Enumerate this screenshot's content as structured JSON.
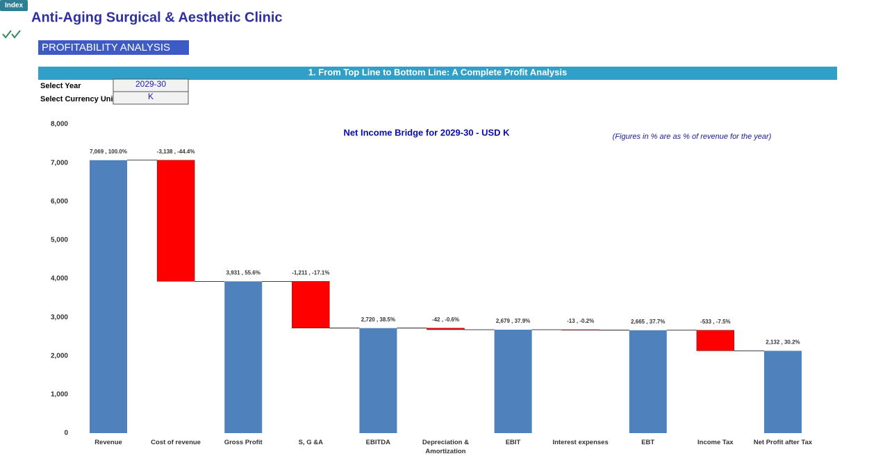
{
  "index_tab": "Index",
  "header": {
    "title": "Anti-Aging Surgical & Aesthetic Clinic",
    "section": "PROFITABILITY ANALYSIS",
    "banner": "1. From Top Line to Bottom Line: A Complete Profit Analysis"
  },
  "inputs": {
    "year_label": "Select Year",
    "year_value": "2029-30",
    "currency_label": "Select Currency Unit",
    "currency_value": "K"
  },
  "chart_data": {
    "type": "waterfall",
    "title": "Net Income Bridge for 2029-30 - USD K",
    "note": "(Figures in % are as % of revenue for the year)",
    "categories": [
      "Revenue",
      "Cost of revenue",
      "Gross Profit",
      "S, G &A",
      "EBITDA",
      "Depreciation & Amortization",
      "EBIT",
      "Interest expenses",
      "EBT",
      "Income Tax",
      "Net Profit after Tax"
    ],
    "values": [
      7069,
      -3138,
      3931,
      -1211,
      2720,
      -42,
      2679,
      -13,
      2665,
      -533,
      2132
    ],
    "value_labels": [
      "7,069 , 100.0%",
      "-3,138 , -44.4%",
      "3,931 , 55.6%",
      "-1,211 , -17.1%",
      "2,720 , 38.5%",
      "-42 , -0.6%",
      "2,679 , 37.9%",
      "-13 , -0.2%",
      "2,665 , 37.7%",
      "-533 , -7.5%",
      "2,132 , 30.2%"
    ],
    "total_color": "#4f81bd",
    "decrease_color": "#ff0000",
    "ylim": [
      0,
      8000
    ],
    "yticks": [
      0,
      {
        "value": 1000,
        "label": "1,000"
      },
      {
        "value": 2000,
        "label": "2,000"
      },
      {
        "value": 3000,
        "label": "3,000"
      },
      {
        "value": 4000,
        "label": "4,000"
      },
      {
        "value": 5000,
        "label": "5,000"
      },
      {
        "value": 6000,
        "label": "6,000"
      },
      {
        "value": 7000,
        "label": "7,000"
      },
      {
        "value": 8000,
        "label": "8,000"
      }
    ],
    "grid": false
  }
}
